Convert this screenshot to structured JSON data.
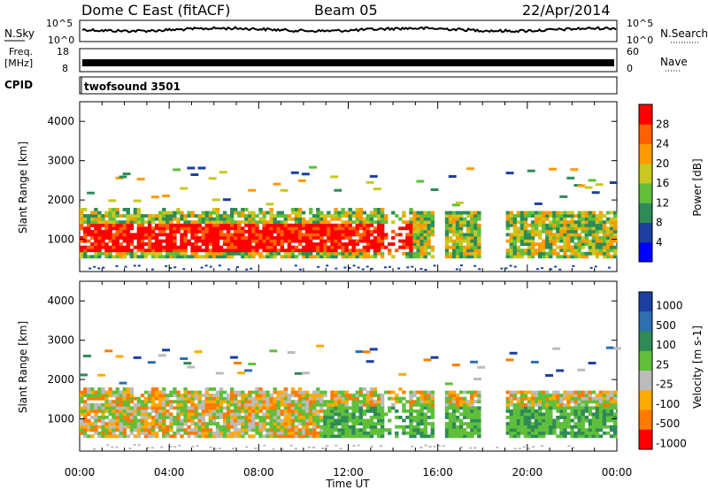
{
  "header": {
    "station": "Dome C East (fitACF)",
    "beam": "Beam 05",
    "date": "22/Apr/2014"
  },
  "top_panels": {
    "nsky_label": "N.Sky",
    "nsearch_label": "N.Search",
    "nsky_ticks": [
      "10^5",
      "10^0"
    ],
    "freq_label_1": "Freq.",
    "freq_label_2": "[MHz]",
    "freq_ticks": [
      "18",
      "8"
    ],
    "nave_label": "Nave",
    "nave_ticks": [
      "60",
      "0"
    ],
    "cpid_label": "CPID",
    "cpid_value": "twofsound 3501"
  },
  "chart_data": [
    {
      "type": "heatmap",
      "name": "power",
      "ylabel": "Slant Range [km]",
      "y_ticks": [
        1000,
        2000,
        3000,
        4000
      ],
      "ylim": [
        180,
        4500
      ],
      "xlabel": "Time UT",
      "x_ticks": [
        "00:00",
        "04:00",
        "08:00",
        "12:00",
        "16:00",
        "20:00",
        "00:00"
      ],
      "colorbar_label": "Power [dB]",
      "colorbar_ticks": [
        4,
        8,
        12,
        16,
        20,
        24,
        28
      ],
      "colorbar_range": [
        0,
        30
      ],
      "colors": [
        "#0000ff",
        "#1a3fa0",
        "#2e8b57",
        "#5fbf3a",
        "#c8c820",
        "#ff9a00",
        "#ff6000",
        "#ff0000"
      ]
    },
    {
      "type": "heatmap",
      "name": "velocity",
      "ylabel": "Slant Range [km]",
      "y_ticks": [
        1000,
        2000,
        3000,
        4000
      ],
      "ylim": [
        180,
        4500
      ],
      "xlabel": "Time UT",
      "x_ticks": [
        "00:00",
        "04:00",
        "08:00",
        "12:00",
        "16:00",
        "20:00",
        "00:00"
      ],
      "colorbar_label": "Velocity [m s-1]",
      "colorbar_ticks": [
        "1000",
        "500",
        "100",
        "25",
        "-25",
        "-100",
        "-500",
        "-1000"
      ],
      "colors": [
        "#1a3fa0",
        "#2e6fb0",
        "#2e8b57",
        "#5fbf3a",
        "#bbbbbb",
        "#ffaa00",
        "#ff7a00",
        "#ff0000"
      ]
    }
  ]
}
